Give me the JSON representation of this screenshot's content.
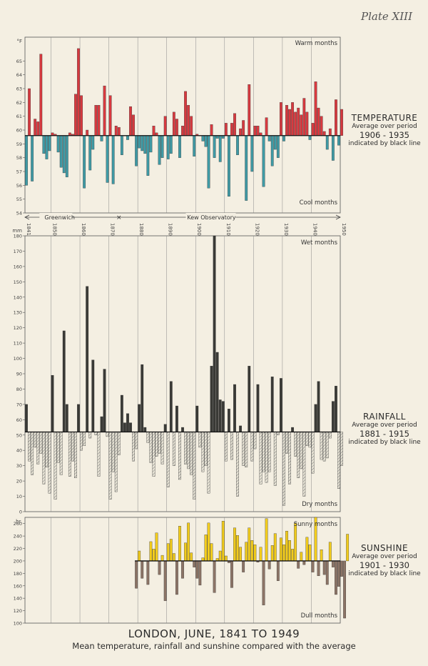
{
  "plate_label": "Plate XIII",
  "title": "LONDON, JUNE, 1841 TO 1949",
  "subtitle": "Mean temperature, rainfall and sunshine compared with the average",
  "station_labels": {
    "left": "Greenwich",
    "right": "Kew Observatory"
  },
  "year_ticks": [
    "1841",
    "1850",
    "1860",
    "1870",
    "1880",
    "1890",
    "1900",
    "1910",
    "1920",
    "1930",
    "1940",
    "1950"
  ],
  "panels": {
    "temperature": {
      "heading": "TEMPERATURE",
      "avg_line": "Average over period",
      "avg_period": "1906 - 1935",
      "note": "indicated by black line",
      "unit": "°F",
      "label_above": "Warm months",
      "label_below": "Cool months",
      "color_above": "#d8393f",
      "color_below": "#3f9aa5"
    },
    "rainfall": {
      "heading": "RAINFALL",
      "avg_line": "Average over period",
      "avg_period": "1881 - 1915",
      "note": "indicated by black line",
      "unit": "mm",
      "label_above": "Wet months",
      "label_below": "Dry months",
      "color_above": "#3a3a36",
      "color_below": "#9a9a90"
    },
    "sunshine": {
      "heading": "SUNSHINE",
      "avg_line": "Average over period",
      "avg_period": "1901 - 1930",
      "note": "indicated by black line",
      "unit": "hr.",
      "label_above": "Sunny months",
      "label_below": "Dull months",
      "color_above": "#f2cc1c",
      "color_below": "#8c7466"
    }
  },
  "chart_data": [
    {
      "type": "bar",
      "series_key": "temperature",
      "ylabel": "°F",
      "ylim": [
        54,
        66
      ],
      "yticks": [
        54,
        55,
        56,
        57,
        58,
        59,
        60,
        61,
        62,
        63,
        64,
        65
      ],
      "baseline": 59.6,
      "start_year": 1841,
      "values": [
        56.0,
        63.0,
        56.3,
        60.8,
        60.6,
        65.5,
        58.3,
        57.9,
        58.5,
        59.8,
        59.7,
        58.4,
        57.3,
        56.9,
        56.6,
        59.8,
        59.7,
        62.6,
        65.9,
        62.5,
        55.8,
        60.0,
        57.1,
        58.6,
        61.8,
        61.8,
        59.2,
        63.2,
        56.2,
        62.5,
        56.1,
        60.3,
        60.2,
        58.2,
        59.6,
        59.3,
        61.7,
        61.1,
        57.4,
        58.7,
        58.5,
        58.3,
        56.7,
        58.4,
        60.3,
        59.8,
        57.5,
        58.0,
        61.0,
        57.9,
        58.3,
        61.3,
        60.8,
        58.0,
        60.3,
        62.8,
        61.8,
        61.0,
        58.1,
        59.7,
        59.6,
        59.2,
        58.8,
        55.8,
        60.4,
        58.0,
        59.4,
        57.7,
        59.4,
        60.5,
        55.2,
        60.5,
        61.2,
        58.2,
        60.1,
        60.7,
        54.9,
        63.3,
        57.0,
        60.3,
        60.3,
        59.8,
        55.9,
        60.9,
        59.2,
        57.4,
        58.6,
        58.0,
        62.0,
        59.2,
        61.8,
        61.5,
        62.0,
        61.3,
        61.6,
        61.1,
        62.3,
        61.3,
        59.3,
        60.5,
        63.5,
        61.6,
        61.0,
        59.9,
        58.6,
        60.1,
        57.8,
        62.2,
        58.9,
        61.5
      ]
    },
    {
      "type": "bar",
      "series_key": "rainfall",
      "ylabel": "mm",
      "ylim": [
        0,
        180
      ],
      "yticks": [
        0,
        10,
        20,
        30,
        40,
        50,
        60,
        70,
        80,
        90,
        100,
        110,
        120,
        130,
        140,
        150,
        160,
        170,
        180
      ],
      "baseline": 52,
      "start_year": 1841,
      "values": [
        70,
        33,
        24,
        42,
        31,
        38,
        18,
        29,
        12,
        89,
        8,
        32,
        24,
        118,
        70,
        23,
        33,
        22,
        70,
        40,
        43,
        147,
        48,
        99,
        50,
        23,
        62,
        93,
        49,
        8,
        26,
        13,
        37,
        76,
        58,
        64,
        58,
        33,
        41,
        70,
        96,
        55,
        45,
        32,
        23,
        36,
        38,
        31,
        57,
        16,
        85,
        30,
        69,
        21,
        55,
        31,
        28,
        24,
        8,
        69,
        42,
        26,
        30,
        12,
        95,
        185,
        104,
        73,
        72,
        33,
        67,
        34,
        83,
        10,
        56,
        30,
        29,
        95,
        33,
        41,
        83,
        18,
        26,
        19,
        26,
        88,
        17,
        50,
        87,
        4,
        38,
        18,
        55,
        36,
        22,
        28,
        10,
        43,
        42,
        25,
        70,
        85,
        34,
        33,
        35,
        48,
        72,
        82,
        15,
        30
      ]
    },
    {
      "type": "bar",
      "series_key": "sunshine",
      "ylabel": "hr.",
      "ylim": [
        100,
        270
      ],
      "yticks": [
        100,
        120,
        140,
        160,
        180,
        200,
        220,
        240,
        260
      ],
      "baseline": 200,
      "start_year": 1879,
      "values": [
        156,
        216,
        172,
        200,
        162,
        231,
        219,
        245,
        178,
        209,
        136,
        228,
        235,
        212,
        146,
        256,
        172,
        229,
        261,
        213,
        190,
        172,
        161,
        205,
        242,
        261,
        228,
        149,
        204,
        216,
        264,
        208,
        197,
        157,
        253,
        241,
        222,
        182,
        230,
        253,
        233,
        226,
        198,
        222,
        129,
        268,
        187,
        225,
        244,
        168,
        237,
        226,
        248,
        233,
        219,
        261,
        188,
        214,
        194,
        238,
        226,
        182,
        272,
        176,
        218,
        178,
        162,
        230,
        190,
        146,
        159,
        175,
        108,
        243
      ]
    }
  ]
}
